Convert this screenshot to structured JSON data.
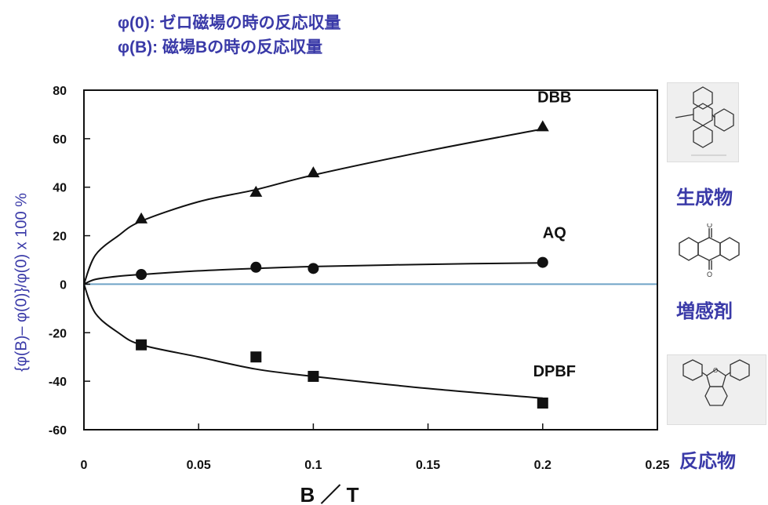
{
  "header": {
    "line1": "φ(0): ゼロ磁場の時の反応収量",
    "line2": "φ(B): 磁場Bの時の反応収量"
  },
  "colors": {
    "title_text": "#3a3aa8",
    "axis_text": "#111111",
    "zero_line": "#6fa3c6"
  },
  "chart_data": {
    "type": "scatter",
    "xlabel": "B ／ T",
    "ylabel": "{φ(B)– φ(0)}/φ(0) x 100 %",
    "xlim": [
      0,
      0.25
    ],
    "ylim": [
      -60,
      80
    ],
    "xticks": [
      {
        "value": 0,
        "label": "0"
      },
      {
        "value": 0.05,
        "label": "0.05"
      },
      {
        "value": 0.1,
        "label": "0.1"
      },
      {
        "value": 0.15,
        "label": "0.15"
      },
      {
        "value": 0.2,
        "label": "0.2"
      },
      {
        "value": 0.25,
        "label": "0.25"
      }
    ],
    "yticks": [
      {
        "value": 80,
        "label": "80"
      },
      {
        "value": 60,
        "label": "60"
      },
      {
        "value": 40,
        "label": "40"
      },
      {
        "value": 20,
        "label": "20"
      },
      {
        "value": 0,
        "label": "0"
      },
      {
        "value": -20,
        "label": "-20"
      },
      {
        "value": -40,
        "label": "-40"
      },
      {
        "value": -60,
        "label": "-60"
      }
    ],
    "grid": false,
    "series": [
      {
        "name": "DBB",
        "marker": "triangle",
        "x": [
          0.025,
          0.075,
          0.1,
          0.2
        ],
        "y": [
          27,
          38,
          46,
          65
        ],
        "fit": {
          "x": [
            0,
            0.005,
            0.015,
            0.025,
            0.05,
            0.075,
            0.1,
            0.15,
            0.2
          ],
          "y": [
            0,
            12,
            20,
            26,
            34,
            39,
            45,
            55,
            64
          ]
        }
      },
      {
        "name": "AQ",
        "marker": "circle",
        "x": [
          0.025,
          0.075,
          0.1,
          0.2
        ],
        "y": [
          4,
          7,
          6.5,
          9
        ],
        "fit": {
          "x": [
            0,
            0.005,
            0.015,
            0.025,
            0.05,
            0.075,
            0.1,
            0.15,
            0.2
          ],
          "y": [
            0,
            2,
            3.3,
            4,
            5.5,
            6.5,
            7.3,
            8.2,
            8.8
          ]
        }
      },
      {
        "name": "DPBF",
        "marker": "square",
        "x": [
          0.025,
          0.075,
          0.1,
          0.2
        ],
        "y": [
          -25,
          -30,
          -38,
          -49
        ],
        "fit": {
          "x": [
            0,
            0.005,
            0.015,
            0.025,
            0.05,
            0.075,
            0.1,
            0.15,
            0.2
          ],
          "y": [
            0,
            -12,
            -20,
            -25,
            -30,
            -35,
            -38,
            -43,
            -47
          ]
        }
      }
    ]
  },
  "molecules": {
    "product": {
      "label": "生成物",
      "icon": "product-structure-icon"
    },
    "sensitizer": {
      "label": "増感剤",
      "icon": "anthraquinone-structure-icon"
    },
    "reactant": {
      "label": "反応物",
      "icon": "dpbf-structure-icon"
    }
  }
}
